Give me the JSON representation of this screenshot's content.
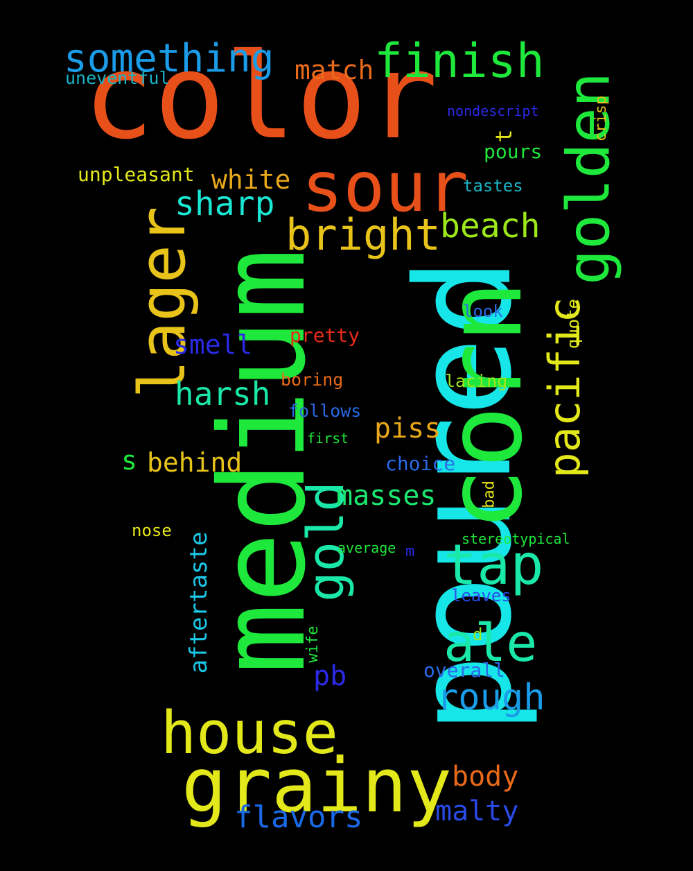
{
  "words": {
    "color": "color",
    "poured": "poured",
    "medium": "medium",
    "corn": "corn",
    "sour": "sour",
    "grainy": "grainy",
    "lager": "lager",
    "house": "house",
    "golden": "golden",
    "finish": "finish",
    "something": "something",
    "tap": "tap",
    "ale": "ale",
    "bright": "bright",
    "pacific": "pacific",
    "gold": "gold",
    "sharp": "sharp",
    "beach": "beach",
    "rough": "rough",
    "harsh": "harsh",
    "masses": "masses",
    "behind": "behind",
    "piss": "piss",
    "flavors": "flavors",
    "malty": "malty",
    "body": "body",
    "smell": "smell",
    "match": "match",
    "white": "white",
    "aftertaste": "aftertaste",
    "pb": "pb",
    "unpleasant": "unpleasant",
    "uneventful": "uneventful",
    "nondescript": "nondescript",
    "crisp": "crisp",
    "t": "t",
    "pours": "pours",
    "tastes": "tastes",
    "look": "look",
    "quote": "quote",
    "pretty": "pretty",
    "boring": "boring",
    "lacing": "lacing",
    "follows": "follows",
    "first": "first",
    "choice": "choice",
    "s": "s",
    "bad": "bad",
    "nose": "nose",
    "stereotypical": "stereotypical",
    "average": "average",
    "m": "m",
    "leaves": "leaves",
    "d": "d",
    "wife": "wife",
    "overall": "overall"
  },
  "colors": {
    "orange_red": "#e8501a",
    "cyan": "#17e6e8",
    "green": "#1ee83c",
    "yellow": "#e2e81a",
    "gold": "#e8c31a",
    "teal": "#1ae8a8",
    "sky": "#1a9ce8",
    "blue": "#2a2ae8",
    "orange": "#e86a1a",
    "red": "#e82a1a",
    "lime": "#9ce81a"
  }
}
